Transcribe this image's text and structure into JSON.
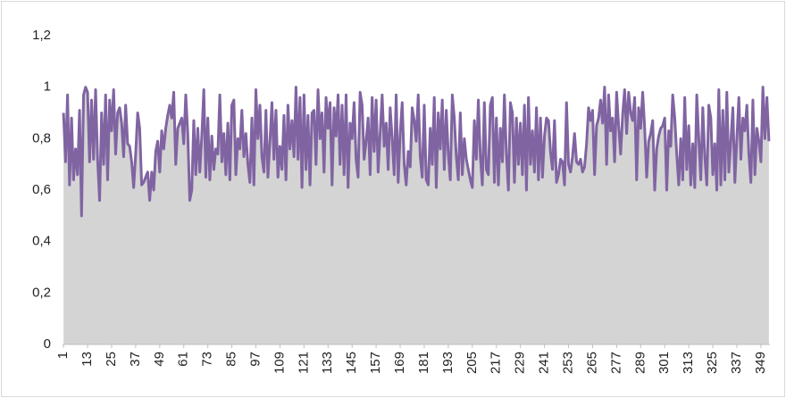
{
  "chart_data": {
    "type": "line-area",
    "color": "#8064a2",
    "area_color": "#d4d4d4",
    "ylim": [
      0,
      1.2
    ],
    "yticks": [
      0,
      {
        "value": 0.2,
        "label": "0,2"
      },
      {
        "value": 0.4,
        "label": "0,4"
      },
      {
        "value": 0.6,
        "label": "0,6"
      },
      {
        "value": 0.8,
        "label": "0,8"
      },
      1,
      {
        "value": 1.2,
        "label": "1,2"
      }
    ],
    "grid": false,
    "categories": [
      "1",
      null,
      null,
      null,
      null,
      null,
      null,
      null,
      null,
      null,
      null,
      null,
      "13",
      null,
      null,
      null,
      null,
      null,
      null,
      null,
      null,
      null,
      null,
      null,
      "25",
      null,
      null,
      null,
      null,
      null,
      null,
      null,
      null,
      null,
      null,
      null,
      "37",
      null,
      null,
      null,
      null,
      null,
      null,
      null,
      null,
      null,
      null,
      null,
      "49",
      null,
      null,
      null,
      null,
      null,
      null,
      null,
      null,
      null,
      null,
      null,
      "61",
      null,
      null,
      null,
      null,
      null,
      null,
      null,
      null,
      null,
      null,
      null,
      "73",
      null,
      null,
      null,
      null,
      null,
      null,
      null,
      null,
      null,
      null,
      null,
      "85",
      null,
      null,
      null,
      null,
      null,
      null,
      null,
      null,
      null,
      null,
      null,
      "97",
      null,
      null,
      null,
      null,
      null,
      null,
      null,
      null,
      null,
      null,
      null,
      "109",
      null,
      null,
      null,
      null,
      null,
      null,
      null,
      null,
      null,
      null,
      null,
      "121",
      null,
      null,
      null,
      null,
      null,
      null,
      null,
      null,
      null,
      null,
      null,
      "133",
      null,
      null,
      null,
      null,
      null,
      null,
      null,
      null,
      null,
      null,
      null,
      "145",
      null,
      null,
      null,
      null,
      null,
      null,
      null,
      null,
      null,
      null,
      null,
      "157",
      null,
      null,
      null,
      null,
      null,
      null,
      null,
      null,
      null,
      null,
      null,
      "169",
      null,
      null,
      null,
      null,
      null,
      null,
      null,
      null,
      null,
      null,
      null,
      "181",
      null,
      null,
      null,
      null,
      null,
      null,
      null,
      null,
      null,
      null,
      null,
      "193",
      null,
      null,
      null,
      null,
      null,
      null,
      null,
      null,
      null,
      null,
      null,
      "205",
      null,
      null,
      null,
      null,
      null,
      null,
      null,
      null,
      null,
      null,
      null,
      "217",
      null,
      null,
      null,
      null,
      null,
      null,
      null,
      null,
      null,
      null,
      null,
      "229",
      null,
      null,
      null,
      null,
      null,
      null,
      null,
      null,
      null,
      null,
      null,
      "241",
      null,
      null,
      null,
      null,
      null,
      null,
      null,
      null,
      null,
      null,
      null,
      "253",
      null,
      null,
      null,
      null,
      null,
      null,
      null,
      null,
      null,
      null,
      null,
      "265",
      null,
      null,
      null,
      null,
      null,
      null,
      null,
      null,
      null,
      null,
      null,
      "277",
      null,
      null,
      null,
      null,
      null,
      null,
      null,
      null,
      null,
      null,
      null,
      "289",
      null,
      null,
      null,
      null,
      null,
      null,
      null,
      null,
      null,
      null,
      null,
      "301",
      null,
      null,
      null,
      null,
      null,
      null,
      null,
      null,
      null,
      null,
      null,
      "313",
      null,
      null,
      null,
      null,
      null,
      null,
      null,
      null,
      null,
      null,
      null,
      "325",
      null,
      null,
      null,
      null,
      null,
      null,
      null,
      null,
      null,
      null,
      null,
      "337",
      null,
      null,
      null,
      null,
      null,
      null,
      null,
      null,
      null,
      null,
      null,
      "349",
      null,
      null,
      null,
      null
    ],
    "values": [
      0.9,
      0.71,
      0.97,
      0.62,
      0.88,
      0.64,
      0.76,
      0.66,
      0.91,
      0.5,
      0.97,
      1.0,
      0.98,
      0.71,
      0.95,
      0.72,
      0.99,
      0.72,
      0.56,
      0.9,
      0.7,
      0.97,
      0.64,
      0.95,
      0.83,
      0.99,
      0.74,
      0.9,
      0.92,
      0.86,
      0.73,
      0.93,
      0.78,
      0.77,
      0.71,
      0.61,
      0.74,
      0.9,
      0.84,
      0.62,
      0.63,
      0.65,
      0.67,
      0.56,
      0.67,
      0.6,
      0.75,
      0.79,
      0.67,
      0.83,
      0.76,
      0.84,
      0.89,
      0.93,
      0.88,
      0.98,
      0.7,
      0.84,
      0.86,
      0.88,
      0.78,
      0.97,
      0.82,
      0.56,
      0.6,
      0.87,
      0.66,
      0.84,
      0.67,
      0.81,
      0.99,
      0.65,
      0.88,
      0.64,
      0.81,
      0.68,
      0.76,
      0.74,
      0.97,
      0.71,
      0.82,
      0.66,
      0.86,
      0.64,
      0.93,
      0.95,
      0.66,
      0.8,
      0.76,
      0.91,
      0.73,
      0.82,
      0.7,
      0.63,
      0.88,
      0.62,
      0.99,
      0.8,
      0.93,
      0.73,
      0.67,
      0.91,
      0.65,
      0.79,
      0.94,
      0.72,
      0.91,
      0.65,
      0.77,
      0.68,
      0.89,
      0.64,
      0.93,
      0.76,
      0.87,
      0.73,
      1.0,
      0.72,
      0.96,
      0.61,
      0.97,
      0.68,
      0.89,
      0.62,
      0.9,
      0.91,
      0.7,
      0.99,
      0.8,
      0.9,
      0.67,
      0.96,
      0.84,
      0.94,
      0.62,
      0.92,
      0.81,
      0.97,
      0.7,
      0.93,
      0.66,
      0.97,
      0.61,
      0.86,
      0.8,
      0.94,
      0.72,
      0.65,
      0.98,
      0.93,
      0.72,
      0.79,
      0.88,
      0.66,
      0.96,
      0.75,
      0.95,
      0.67,
      0.82,
      0.97,
      0.77,
      0.86,
      0.68,
      0.92,
      0.8,
      0.66,
      0.97,
      0.63,
      0.82,
      0.94,
      0.7,
      0.62,
      0.75,
      0.69,
      0.92,
      0.87,
      0.79,
      0.97,
      0.73,
      0.65,
      0.93,
      0.64,
      0.62,
      0.84,
      0.7,
      0.96,
      0.61,
      0.9,
      0.76,
      0.95,
      0.68,
      0.91,
      0.74,
      0.64,
      0.97,
      0.88,
      0.73,
      0.64,
      0.9,
      0.66,
      0.8,
      0.72,
      0.68,
      0.64,
      0.61,
      0.87,
      0.72,
      0.95,
      0.73,
      0.62,
      0.94,
      0.68,
      0.66,
      0.93,
      0.96,
      0.63,
      0.88,
      0.62,
      0.84,
      0.71,
      0.97,
      0.74,
      0.6,
      0.94,
      0.9,
      0.63,
      0.88,
      0.7,
      0.86,
      0.66,
      0.93,
      0.6,
      0.96,
      0.7,
      0.83,
      0.67,
      0.92,
      0.64,
      0.88,
      0.65,
      0.81,
      0.88,
      0.87,
      0.75,
      0.68,
      0.87,
      0.63,
      0.66,
      0.72,
      0.71,
      0.62,
      0.94,
      0.7,
      0.67,
      0.73,
      0.82,
      0.71,
      0.7,
      0.72,
      0.67,
      0.69,
      0.78,
      0.92,
      0.87,
      0.91,
      0.66,
      0.85,
      0.88,
      0.95,
      0.86,
      1.0,
      0.7,
      0.97,
      0.83,
      0.88,
      0.71,
      0.98,
      0.85,
      0.74,
      0.89,
      0.99,
      0.82,
      0.98,
      0.9,
      0.87,
      0.96,
      0.64,
      0.92,
      0.84,
      0.98,
      0.84,
      0.65,
      0.79,
      0.82,
      0.87,
      0.6,
      0.76,
      0.81,
      0.84,
      0.85,
      0.88,
      0.6,
      0.83,
      0.77,
      0.97,
      0.88,
      0.74,
      0.62,
      0.8,
      0.64,
      0.96,
      0.68,
      0.85,
      0.62,
      0.78,
      0.61,
      0.97,
      0.8,
      0.64,
      0.92,
      0.73,
      0.62,
      0.93,
      0.88,
      0.66,
      0.78,
      0.6,
      0.99,
      0.62,
      0.91,
      0.64,
      0.98,
      0.67,
      0.79,
      0.92,
      0.63,
      0.8,
      0.96,
      0.72,
      0.88,
      0.83,
      0.93,
      0.74,
      0.63,
      0.95,
      0.66,
      0.84,
      0.79,
      0.71,
      1.0,
      0.8,
      0.96,
      0.79
    ]
  }
}
